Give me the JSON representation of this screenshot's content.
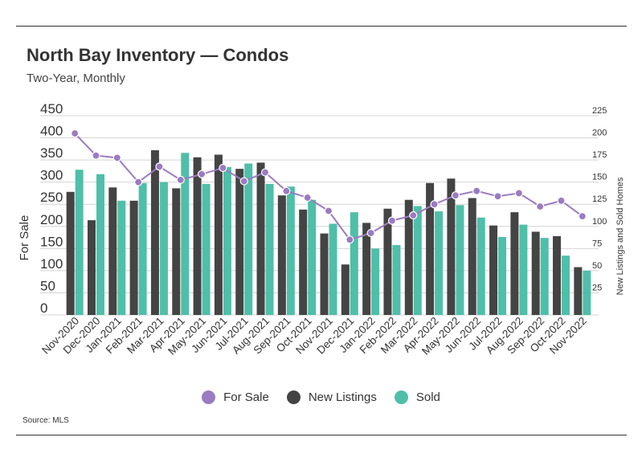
{
  "header": {
    "title": "North Bay Inventory — Condos",
    "subtitle": "Two-Year, Monthly"
  },
  "footer": {
    "source": "Source:  MLS"
  },
  "chart_data": {
    "type": "bar",
    "categories": [
      "Nov-2020",
      "Dec-2020",
      "Jan-2021",
      "Feb-2021",
      "Mar-2021",
      "Apr-2021",
      "May-2021",
      "Jun-2021",
      "Jul-2021",
      "Aug-2021",
      "Sep-2021",
      "Oct-2021",
      "Nov-2021",
      "Dec-2021",
      "Jan-2022",
      "Feb-2022",
      "Mar-2022",
      "Apr-2022",
      "May-2022",
      "Jun-2022",
      "Jul-2022",
      "Aug-2022",
      "Sep-2022",
      "Oct-2022",
      "Nov-2022"
    ],
    "ylabel": "For Sale",
    "y2label": "New Listings and Sold Homes",
    "ylim": [
      0,
      450
    ],
    "yticks": [
      0,
      50,
      100,
      150,
      200,
      250,
      300,
      350,
      400,
      450
    ],
    "y2lim": [
      0,
      225
    ],
    "y2ticks": [
      25,
      50,
      75,
      100,
      125,
      150,
      175,
      200,
      225
    ],
    "legend_position": "bottom",
    "grid": true,
    "series": [
      {
        "name": "For Sale",
        "kind": "line",
        "axis": "left",
        "color": "#9b7bc1",
        "values": [
          410,
          360,
          355,
          300,
          335,
          305,
          318,
          332,
          302,
          322,
          280,
          265,
          235,
          170,
          185,
          213,
          225,
          250,
          270,
          280,
          268,
          275,
          245,
          258,
          223
        ]
      },
      {
        "name": "New Listings",
        "kind": "bar",
        "axis": "right",
        "color": "#444444",
        "values": [
          139,
          107,
          144,
          129,
          186,
          143,
          178,
          181,
          165,
          172,
          135,
          119,
          92,
          57,
          104,
          120,
          130,
          149,
          154,
          132,
          101,
          116,
          94,
          89,
          54
        ]
      },
      {
        "name": "Sold",
        "kind": "bar",
        "axis": "right",
        "color": "#4fbfa9",
        "values": [
          164,
          159,
          129,
          149,
          150,
          183,
          148,
          167,
          171,
          148,
          145,
          130,
          103,
          116,
          75,
          79,
          123,
          117,
          124,
          110,
          88,
          102,
          87,
          67,
          50
        ]
      }
    ]
  }
}
